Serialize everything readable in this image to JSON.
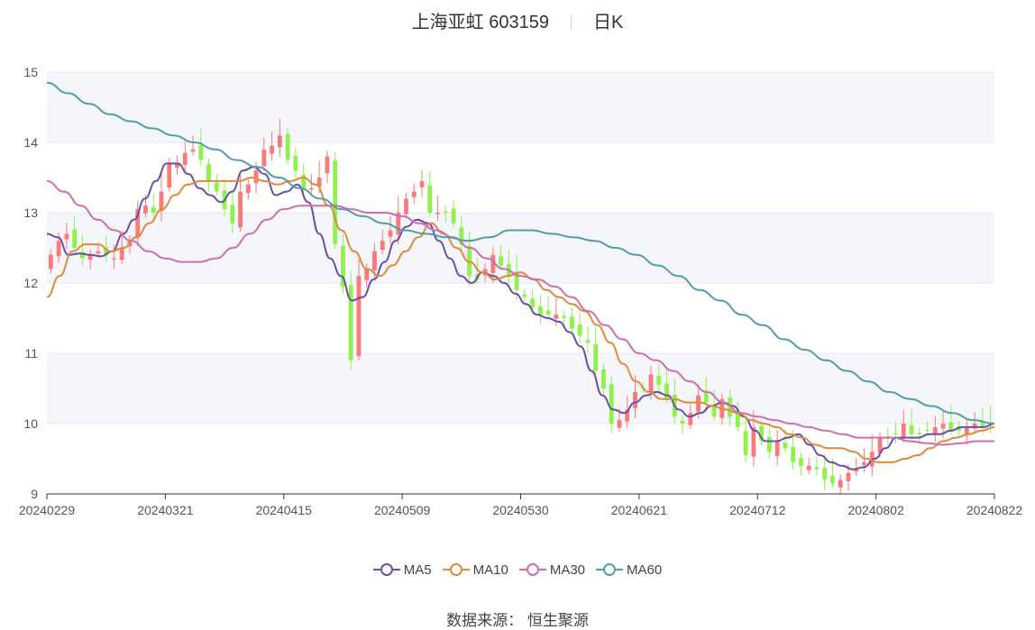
{
  "header": {
    "name": "上海亚虹 603159",
    "period": "日K"
  },
  "footer": {
    "source_label": "数据来源：",
    "source_value": "恒生聚源"
  },
  "colors": {
    "up": "#f87a7a",
    "down": "#8ef24b",
    "band": "#f4f6fb",
    "grid": "#e4e8f0"
  },
  "chart_data": {
    "type": "candlestick",
    "ylim": [
      9,
      15
    ],
    "yticks": [
      9,
      10,
      11,
      12,
      13,
      14,
      15
    ],
    "x_tick_labels": [
      "20240229",
      "20240321",
      "20240415",
      "20240509",
      "20240530",
      "20240621",
      "20240712",
      "20240802",
      "20240822"
    ],
    "legend_position": "bottom-center",
    "closes": [
      12.4,
      12.6,
      12.7,
      12.5,
      12.35,
      12.4,
      12.45,
      12.4,
      12.35,
      12.5,
      12.6,
      13.05,
      13.1,
      13.0,
      13.3,
      13.7,
      13.7,
      13.85,
      13.9,
      13.75,
      13.45,
      13.3,
      13.05,
      12.85,
      13.3,
      13.4,
      13.6,
      13.9,
      13.95,
      14.1,
      13.75,
      13.6,
      13.35,
      13.35,
      13.5,
      13.8,
      12.55,
      11.95,
      10.9,
      12.1,
      12.2,
      12.45,
      12.6,
      12.75,
      13.0,
      13.2,
      13.3,
      13.45,
      13.0,
      13.0,
      13.0,
      12.85,
      12.55,
      12.1,
      12.05,
      12.2,
      12.4,
      12.25,
      12.1,
      11.9,
      11.8,
      11.65,
      11.55,
      11.55,
      11.55,
      11.5,
      11.35,
      11.25,
      11.15,
      10.75,
      10.5,
      10.0,
      10.05,
      10.2,
      10.45,
      10.5,
      10.7,
      10.55,
      10.35,
      10.1,
      10.0,
      10.15,
      10.4,
      10.3,
      10.1,
      10.35,
      10.1,
      9.95,
      9.55,
      9.95,
      9.75,
      9.6,
      9.75,
      9.65,
      9.45,
      9.4,
      9.4,
      9.35,
      9.2,
      9.15,
      9.2,
      9.3,
      9.35,
      9.45,
      9.6,
      9.8,
      9.8,
      9.85,
      10.0,
      9.85,
      9.85,
      9.9,
      9.95,
      10.0,
      9.9,
      9.9,
      9.95,
      10.0,
      9.95,
      10.0
    ],
    "series": [
      {
        "name": "MA5",
        "color": "#6b4fa6",
        "values": [
          12.7,
          12.65,
          12.4,
          12.42,
          12.4,
          12.38,
          12.45,
          12.7,
          12.9,
          13.2,
          13.45,
          13.7,
          13.7,
          13.55,
          13.35,
          13.25,
          13.15,
          13.3,
          13.6,
          13.65,
          13.55,
          13.25,
          13.3,
          13.4,
          13.15,
          12.7,
          12.35,
          12.1,
          11.75,
          11.8,
          12.05,
          12.3,
          12.6,
          12.8,
          12.9,
          12.85,
          12.6,
          12.35,
          12.1,
          12.0,
          12.15,
          12.1,
          12.0,
          11.85,
          11.7,
          11.55,
          11.5,
          11.45,
          11.3,
          11.1,
          10.75,
          10.4,
          10.2,
          10.15,
          10.3,
          10.4,
          10.45,
          10.4,
          10.2,
          10.1,
          10.15,
          10.25,
          10.3,
          10.25,
          10.1,
          9.9,
          9.75,
          9.75,
          9.8,
          9.85,
          9.7,
          9.55,
          9.45,
          9.4,
          9.35,
          9.38,
          9.5,
          9.65,
          9.8,
          9.8,
          9.8,
          9.85,
          9.85,
          9.9,
          9.95,
          9.95,
          9.95,
          10.0
        ]
      },
      {
        "name": "MA10",
        "color": "#e08a3c",
        "values": [
          11.8,
          12.1,
          12.45,
          12.55,
          12.55,
          12.45,
          12.5,
          12.65,
          12.85,
          13.05,
          13.25,
          13.4,
          13.45,
          13.45,
          13.45,
          13.45,
          13.5,
          13.45,
          13.4,
          13.45,
          13.5,
          13.4,
          13.1,
          12.75,
          12.45,
          12.2,
          12.1,
          12.25,
          12.45,
          12.65,
          12.85,
          12.7,
          12.5,
          12.3,
          12.15,
          12.05,
          12.1,
          12.15,
          12.05,
          11.9,
          11.8,
          11.7,
          11.6,
          11.4,
          11.15,
          10.85,
          10.6,
          10.45,
          10.35,
          10.35,
          10.3,
          10.3,
          10.25,
          10.2,
          10.15,
          10.05,
          10.0,
          9.95,
          9.85,
          9.8,
          9.7,
          9.65,
          9.65,
          9.6,
          9.5,
          9.45,
          9.45,
          9.5,
          9.55,
          9.65,
          9.75,
          9.8,
          9.85,
          9.9,
          9.95
        ]
      },
      {
        "name": "MA30",
        "color": "#d26cae",
        "values": [
          13.45,
          13.3,
          13.1,
          12.9,
          12.75,
          12.6,
          12.45,
          12.35,
          12.3,
          12.3,
          12.35,
          12.5,
          12.7,
          12.9,
          13.05,
          13.1,
          13.1,
          13.1,
          13.05,
          13.0,
          13.0,
          12.95,
          12.85,
          12.75,
          12.65,
          12.5,
          12.35,
          12.2,
          12.1,
          12.05,
          11.95,
          11.8,
          11.6,
          11.4,
          11.2,
          11.0,
          10.9,
          10.75,
          10.6,
          10.45,
          10.3,
          10.15,
          10.1,
          10.05,
          10.0,
          9.95,
          9.9,
          9.85,
          9.8,
          9.8,
          9.8,
          9.75,
          9.72,
          9.7,
          9.72,
          9.75,
          9.75
        ]
      },
      {
        "name": "MA60",
        "color": "#4f9fa6",
        "values": [
          14.85,
          14.7,
          14.55,
          14.4,
          14.3,
          14.2,
          14.1,
          14.0,
          13.9,
          13.75,
          13.65,
          13.5,
          13.35,
          13.2,
          13.05,
          12.95,
          12.85,
          12.75,
          12.7,
          12.65,
          12.6,
          12.65,
          12.75,
          12.75,
          12.7,
          12.65,
          12.6,
          12.5,
          12.4,
          12.25,
          12.1,
          11.9,
          11.75,
          11.55,
          11.4,
          11.2,
          11.05,
          10.9,
          10.75,
          10.6,
          10.45,
          10.35,
          10.25,
          10.15,
          10.05,
          10.0
        ]
      }
    ]
  }
}
